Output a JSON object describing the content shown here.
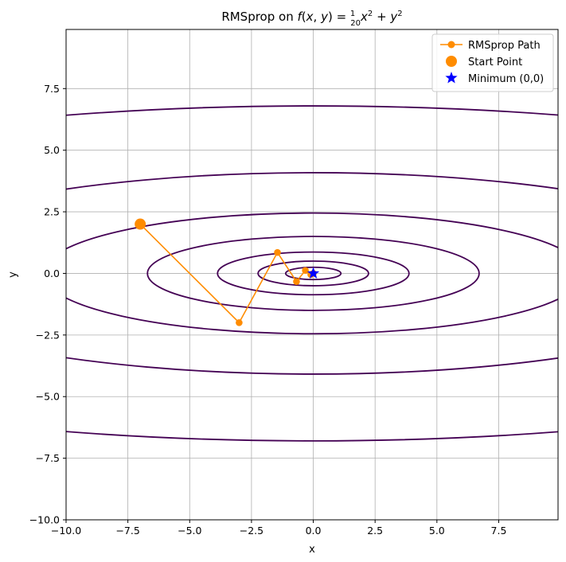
{
  "chart_data": {
    "type": "line",
    "title": "RMSprop on f(x, y) = 1/20 x² + y²",
    "xlabel": "x",
    "ylabel": "y",
    "xlim": [
      -10,
      9.9
    ],
    "ylim": [
      -10,
      9.9
    ],
    "xticks": [
      "−10.0",
      "−7.5",
      "−5.0",
      "−2.5",
      "0.0",
      "2.5",
      "5.0",
      "7.5"
    ],
    "xtick_values": [
      -10,
      -7.5,
      -5,
      -2.5,
      0,
      2.5,
      5,
      7.5
    ],
    "yticks": [
      "−10.0",
      "−7.5",
      "−5.0",
      "−2.5",
      "0.0",
      "2.5",
      "5.0",
      "7.5"
    ],
    "ytick_values": [
      -10,
      -7.5,
      -5,
      -2.5,
      0,
      2.5,
      5,
      7.5
    ],
    "grid": true,
    "legend_position": "top-right",
    "contour_levels": [
      0.0625,
      0.25,
      0.75,
      2.25,
      6.0,
      16.7,
      46.2
    ],
    "series": [
      {
        "name": "RMSprop Path",
        "color": "#ff8c00",
        "x": [
          -7.0,
          -3.0,
          -1.45,
          -0.68,
          -0.32,
          -0.1,
          0.0
        ],
        "y": [
          2.0,
          -2.0,
          0.85,
          -0.33,
          0.12,
          -0.05,
          0.0
        ]
      },
      {
        "name": "Start Point",
        "color": "#ff8c00",
        "x": [
          -7.0
        ],
        "y": [
          2.0
        ]
      },
      {
        "name": "Minimum (0,0)",
        "color": "#0000ff",
        "x": [
          0
        ],
        "y": [
          0
        ]
      }
    ],
    "contour_color": "#440154"
  }
}
